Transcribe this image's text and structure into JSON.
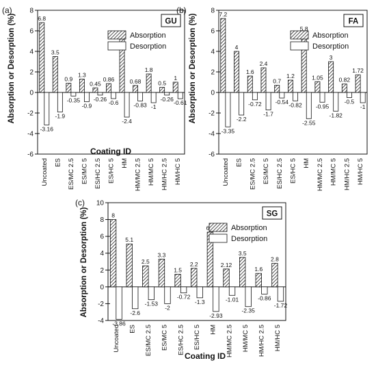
{
  "chart_data": [
    {
      "type": "bar",
      "panel_label": "(a)",
      "tag": "GU",
      "categories": [
        "Uncoated",
        "ES",
        "ES/MC 2.5",
        "ES/MC 5",
        "ES/HC 2.5",
        "ES/HC 5",
        "HM",
        "HM/MC 2.5",
        "HM/MC 5",
        "HM/HC 2.5",
        "HM/HC 5"
      ],
      "series": [
        {
          "name": "Absorption",
          "values": [
            6.8,
            3.5,
            0.9,
            1.3,
            0.45,
            0.86,
            5.2,
            0.68,
            1.8,
            0.5,
            1
          ]
        },
        {
          "name": "Desorption",
          "values": [
            -3.16,
            -1.9,
            -0.35,
            -0.9,
            -0.26,
            -0.6,
            -2.4,
            -0.83,
            -1,
            -0.26,
            -0.61
          ]
        }
      ],
      "absorption_labels": [
        "6.8",
        "3.5",
        "0.9",
        "1.3",
        "0.45",
        "0.86",
        "5.2",
        "0.68",
        "1.8",
        "0.5",
        "1"
      ],
      "desorption_labels": [
        "-3.16",
        "-1.9",
        "-0.35",
        "-0.9",
        "-0.26",
        "-0.6",
        "-2.4",
        "-0.83",
        "-1",
        "-0.26",
        "-0.61"
      ],
      "ylabel": "Absorption or Desorption (%)",
      "xlabel": "Coating ID",
      "ylim": [
        -6,
        8
      ],
      "yticks": [
        "-6",
        "-4",
        "-2",
        "0",
        "2",
        "4",
        "6",
        "8"
      ],
      "legend_position": "top-right"
    },
    {
      "type": "bar",
      "panel_label": "(b)",
      "tag": "FA",
      "categories": [
        "Uncoated",
        "ES",
        "ES/MC 2.5",
        "ES/MC 5",
        "ES/HC 2.5",
        "ES/HC 5",
        "HM",
        "HM/MC 2.5",
        "HM/MC 5",
        "HM/HC 2.5",
        "HM/HC 5"
      ],
      "series": [
        {
          "name": "Absorption",
          "values": [
            7.2,
            4,
            1.6,
            2.4,
            0.7,
            1.2,
            5.8,
            1.05,
            3,
            0.82,
            1.72
          ]
        },
        {
          "name": "Desorption",
          "values": [
            -3.35,
            -2.2,
            -0.72,
            -1.7,
            -0.54,
            -0.82,
            -2.55,
            -0.95,
            -1.82,
            -0.5,
            -1
          ]
        }
      ],
      "absorption_labels": [
        "7.2",
        "4",
        "1.6",
        "2.4",
        "0.7",
        "1.2",
        "5.8",
        "1.05",
        "3",
        "0.82",
        "1.72"
      ],
      "desorption_labels": [
        "-3.35",
        "-2.2",
        "-0.72",
        "-1.7",
        "-0.54",
        "-0.82",
        "-2.55",
        "-0.95",
        "-1.82",
        "-0.5",
        "-1"
      ],
      "ylabel": "Absorption or Desorption (%)",
      "xlabel": "",
      "ylim": [
        -6,
        8
      ],
      "yticks": [
        "-6",
        "-4",
        "-2",
        "0",
        "2",
        "4",
        "6",
        "8"
      ],
      "legend_position": "top-right"
    },
    {
      "type": "bar",
      "panel_label": "(c)",
      "tag": "SG",
      "categories": [
        "Uncoated",
        "ES",
        "ES/MC 2.5",
        "ES/MC 5",
        "ES/HC 2.5",
        "ES/HC 5",
        "HM",
        "HM/MC 2.5",
        "HM/MC 5",
        "HM/HC 2.5",
        "HM/HC 5"
      ],
      "series": [
        {
          "name": "Absorption",
          "values": [
            8,
            5.1,
            2.5,
            3.3,
            1.5,
            2.2,
            6.5,
            2.12,
            3.5,
            1.6,
            2.8
          ]
        },
        {
          "name": "Desorption",
          "values": [
            -3.86,
            -2.6,
            -1.53,
            -2,
            -0.72,
            -1.3,
            -2.93,
            -1.01,
            -2.35,
            -0.86,
            -1.72
          ]
        }
      ],
      "absorption_labels": [
        "8",
        "5.1",
        "2.5",
        "3.3",
        "1.5",
        "2.2",
        "6.5",
        "2.12",
        "3.5",
        "1.6",
        "2.8"
      ],
      "desorption_labels": [
        "-3.86",
        "-2.6",
        "-1.53",
        "-2",
        "-0.72",
        "-1.3",
        "-2.93",
        "-1.01",
        "-2.35",
        "-0.86",
        "-1.72"
      ],
      "ylabel": "Absorption or Desorption (%)",
      "xlabel": "Coating ID",
      "ylim": [
        -4,
        10
      ],
      "yticks": [
        "-4",
        "-2",
        "0",
        "2",
        "4",
        "6",
        "8",
        "10"
      ],
      "legend_position": "top-right"
    }
  ],
  "colors": {
    "absorption_fill": "#333333",
    "desorption_fill": "#ffffff",
    "axis": "#111111"
  }
}
